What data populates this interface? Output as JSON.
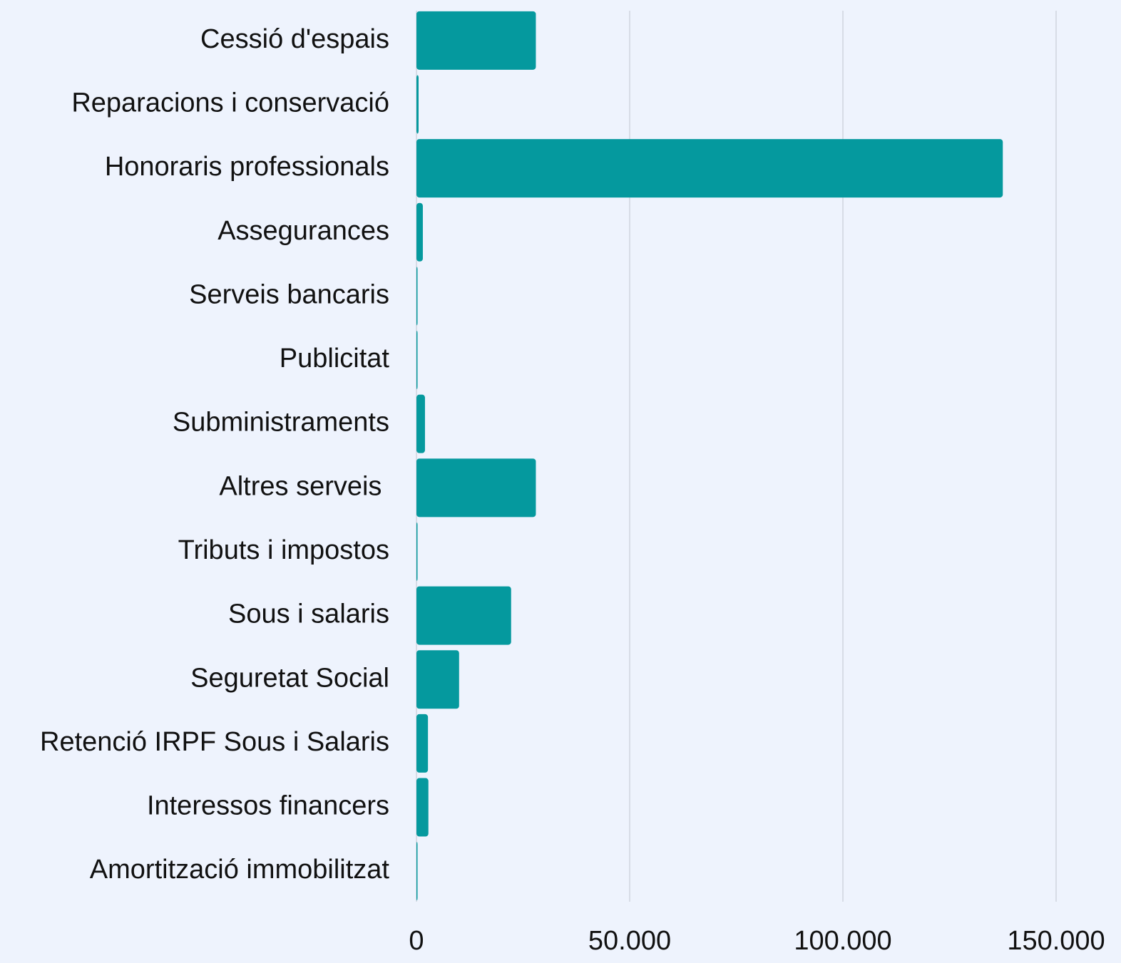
{
  "chart_data": {
    "type": "bar",
    "orientation": "horizontal",
    "categories": [
      "Cessió d'espais",
      "Reparacions i conservació",
      "Honoraris professionals",
      "Assegurances",
      "Serveis bancaris",
      "Publicitat",
      "Subministraments",
      "Altres serveis ",
      "Tributs i impostos",
      "Sous i salaris",
      "Seguretat Social",
      "Retenció IRPF Sous i Salaris",
      "Interessos financers",
      "Amortització immobilitzat"
    ],
    "values": [
      28000,
      500,
      137500,
      1500,
      200,
      100,
      2000,
      28000,
      200,
      22200,
      10000,
      2700,
      2800,
      200
    ],
    "color": "#05999e",
    "xlim": [
      0,
      150000
    ],
    "xticks": [
      0,
      {
        "value": 50000,
        "label": "50.000"
      },
      {
        "value": 100000,
        "label": "100.000"
      },
      {
        "value": 150000,
        "label": "150.000"
      }
    ],
    "grid": true
  }
}
